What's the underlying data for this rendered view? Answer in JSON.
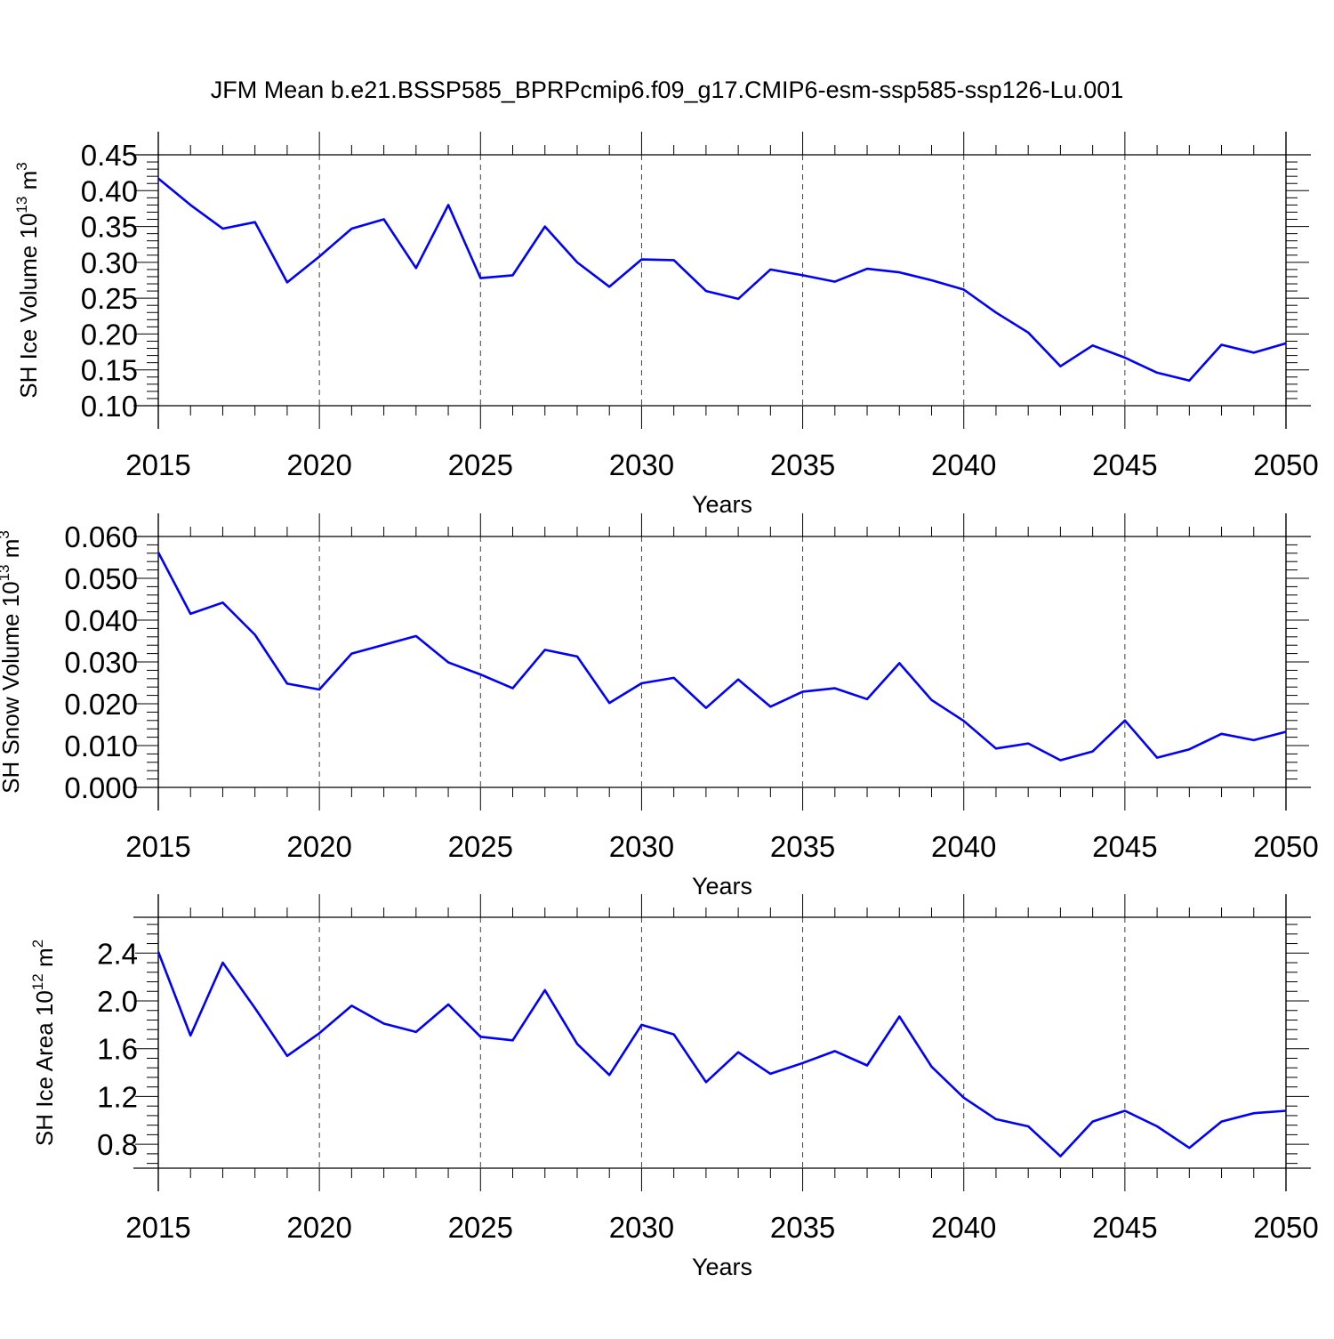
{
  "figure_title": "JFM Mean b.e21.BSSP585_BPRPcmip6.f09_g17.CMIP6-esm-ssp585-ssp126-Lu.001",
  "line_color": "#0000ff",
  "chart_data": [
    {
      "type": "line",
      "xlabel": "Years",
      "ylabel": {
        "main": "SH Ice Volume 10",
        "exp": "13",
        "unit": " m",
        "unit_exp": "3"
      },
      "xlim": [
        2015,
        2050
      ],
      "ylim": [
        0.1,
        0.45
      ],
      "xticks": [
        2015,
        2020,
        2025,
        2030,
        2035,
        2040,
        2045,
        2050
      ],
      "yticks": [
        "0.10",
        "0.15",
        "0.20",
        "0.25",
        "0.30",
        "0.35",
        "0.40",
        "0.45"
      ],
      "x": [
        2015,
        2016,
        2017,
        2018,
        2019,
        2020,
        2021,
        2022,
        2023,
        2024,
        2025,
        2026,
        2027,
        2028,
        2029,
        2030,
        2031,
        2032,
        2033,
        2034,
        2035,
        2036,
        2037,
        2038,
        2039,
        2040,
        2041,
        2042,
        2043,
        2044,
        2045,
        2046,
        2047,
        2048,
        2049,
        2050
      ],
      "series": [
        {
          "name": "SH Ice Volume",
          "values": [
            0.417,
            0.38,
            0.347,
            0.356,
            0.272,
            0.308,
            0.347,
            0.36,
            0.292,
            0.38,
            0.278,
            0.282,
            0.35,
            0.3,
            0.266,
            0.304,
            0.303,
            0.26,
            0.249,
            0.29,
            0.282,
            0.273,
            0.291,
            0.286,
            0.275,
            0.262,
            0.23,
            0.202,
            0.155,
            0.184,
            0.167,
            0.146,
            0.135,
            0.185,
            0.174,
            0.187
          ]
        }
      ]
    },
    {
      "type": "line",
      "xlabel": "Years",
      "ylabel": {
        "main": "SH Snow Volume 10",
        "exp": "13",
        "unit": " m",
        "unit_exp": "3"
      },
      "xlim": [
        2015,
        2050
      ],
      "ylim": [
        0.0,
        0.06
      ],
      "xticks": [
        2015,
        2020,
        2025,
        2030,
        2035,
        2040,
        2045,
        2050
      ],
      "yticks": [
        "0.000",
        "0.010",
        "0.020",
        "0.030",
        "0.040",
        "0.050",
        "0.060"
      ],
      "x": [
        2015,
        2016,
        2017,
        2018,
        2019,
        2020,
        2021,
        2022,
        2023,
        2024,
        2025,
        2026,
        2027,
        2028,
        2029,
        2030,
        2031,
        2032,
        2033,
        2034,
        2035,
        2036,
        2037,
        2038,
        2039,
        2040,
        2041,
        2042,
        2043,
        2044,
        2045,
        2046,
        2047,
        2048,
        2049,
        2050
      ],
      "series": [
        {
          "name": "SH Snow Volume",
          "values": [
            0.0562,
            0.0415,
            0.0442,
            0.0365,
            0.0248,
            0.0234,
            0.032,
            0.0341,
            0.0362,
            0.0299,
            0.027,
            0.0237,
            0.0329,
            0.0313,
            0.0202,
            0.0249,
            0.0262,
            0.019,
            0.0258,
            0.0193,
            0.0229,
            0.0237,
            0.0211,
            0.0297,
            0.0209,
            0.0159,
            0.0093,
            0.0105,
            0.0065,
            0.0086,
            0.016,
            0.0071,
            0.0091,
            0.0128,
            0.0113,
            0.0133
          ]
        }
      ]
    },
    {
      "type": "line",
      "xlabel": "Years",
      "ylabel": {
        "main": "SH Ice Area 10",
        "exp": "12",
        "unit": " m",
        "unit_exp": "2"
      },
      "xlim": [
        2015,
        2050
      ],
      "ylim": [
        0.6,
        2.7
      ],
      "xticks": [
        2015,
        2020,
        2025,
        2030,
        2035,
        2040,
        2045,
        2050
      ],
      "yticks": [
        "0.8",
        "1.2",
        "1.6",
        "2.0",
        "2.4"
      ],
      "x": [
        2015,
        2016,
        2017,
        2018,
        2019,
        2020,
        2021,
        2022,
        2023,
        2024,
        2025,
        2026,
        2027,
        2028,
        2029,
        2030,
        2031,
        2032,
        2033,
        2034,
        2035,
        2036,
        2037,
        2038,
        2039,
        2040,
        2041,
        2042,
        2043,
        2044,
        2045,
        2046,
        2047,
        2048,
        2049,
        2050
      ],
      "series": [
        {
          "name": "SH Ice Area",
          "values": [
            2.41,
            1.71,
            2.32,
            1.94,
            1.54,
            1.73,
            1.96,
            1.81,
            1.74,
            1.97,
            1.7,
            1.67,
            2.09,
            1.64,
            1.38,
            1.8,
            1.72,
            1.32,
            1.57,
            1.39,
            1.48,
            1.58,
            1.46,
            1.87,
            1.45,
            1.19,
            1.01,
            0.95,
            0.7,
            0.99,
            1.08,
            0.95,
            0.77,
            0.99,
            1.06,
            1.08
          ]
        }
      ]
    }
  ]
}
